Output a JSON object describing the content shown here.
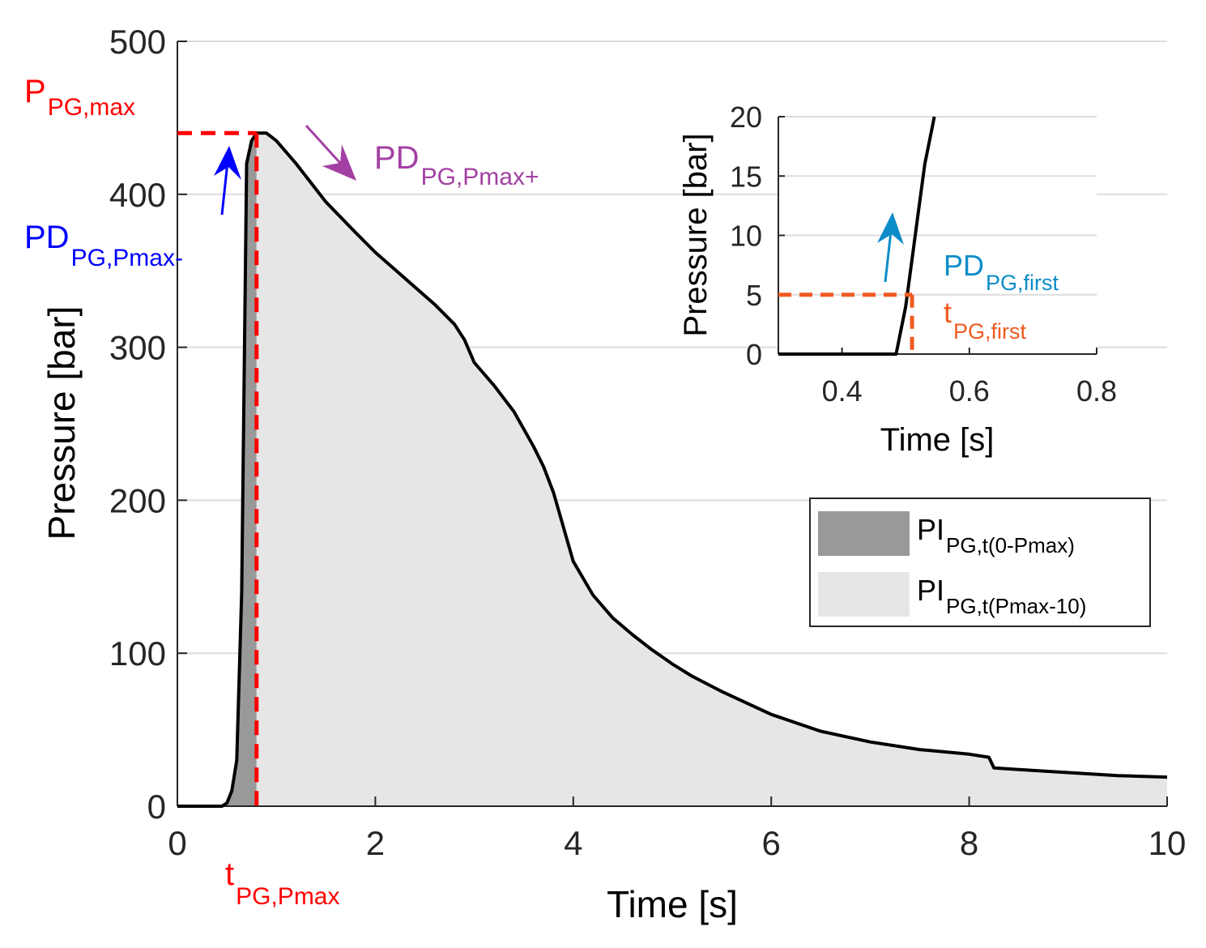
{
  "chart_data": [
    {
      "type": "area",
      "xlabel": "Time [s]",
      "ylabel": "Pressure [bar]",
      "xlim": [
        0,
        10
      ],
      "ylim": [
        0,
        500
      ],
      "xticks": [
        0,
        2,
        4,
        6,
        8,
        10
      ],
      "yticks": [
        0,
        100,
        200,
        300,
        400,
        500
      ],
      "grid": "horizontal",
      "series": [
        {
          "name": "pressure",
          "x": [
            0,
            0.45,
            0.5,
            0.55,
            0.6,
            0.65,
            0.7,
            0.75,
            0.8,
            0.9,
            1.0,
            1.2,
            1.5,
            1.8,
            2.0,
            2.3,
            2.6,
            2.8,
            2.9,
            3.0,
            3.2,
            3.4,
            3.6,
            3.7,
            3.8,
            4.0,
            4.2,
            4.4,
            4.6,
            4.8,
            5.0,
            5.2,
            5.5,
            6.0,
            6.5,
            7.0,
            7.5,
            8.0,
            8.2,
            8.25,
            8.5,
            9.0,
            9.5,
            10.0
          ],
          "y": [
            0,
            0,
            2,
            10,
            30,
            140,
            420,
            435,
            440,
            440,
            435,
            420,
            395,
            375,
            362,
            345,
            328,
            315,
            305,
            290,
            275,
            258,
            235,
            222,
            205,
            160,
            138,
            123,
            112,
            102,
            93,
            85,
            75,
            60,
            49,
            42,
            37,
            34,
            32,
            25,
            24,
            22,
            20,
            19
          ]
        }
      ],
      "shaded_regions": [
        {
          "name": "PI_PG,t(0-Pmax)",
          "x_from": 0.45,
          "x_to": 0.8,
          "color": "#999999"
        },
        {
          "name": "PI_PG,t(Pmax-10)",
          "x_from": 0.8,
          "x_to": 10,
          "color": "#e6e6e6"
        }
      ],
      "markers": {
        "pmax_value": 440,
        "t_pmax": 0.8
      },
      "annotations": {
        "p_max": {
          "main": "P",
          "sub": "PG,max",
          "color": "#ff0000"
        },
        "t_pmax": {
          "main": "t",
          "sub": "PG,Pmax",
          "color": "#ff0000"
        },
        "pd_minus": {
          "main": "PD",
          "sub": "PG,Pmax-",
          "color": "#0000ff"
        },
        "pd_plus": {
          "main": "PD",
          "sub": "PG,Pmax+",
          "color": "#a340a3"
        }
      },
      "legend": {
        "placement": "center-right",
        "items": [
          {
            "main": "PI",
            "sub": "PG,t(0-Pmax)",
            "color": "#999999"
          },
          {
            "main": "PI",
            "sub": "PG,t(Pmax-10)",
            "color": "#e6e6e6"
          }
        ]
      }
    },
    {
      "type": "line",
      "placement": "inset top-right",
      "xlabel": "Time [s]",
      "ylabel": "Pressure [bar]",
      "xlim": [
        0.3,
        0.8
      ],
      "ylim": [
        0,
        20
      ],
      "xticks": [
        0.4,
        0.6,
        0.8
      ],
      "xtick_labels": [
        "0.4",
        "0.6",
        "0.8"
      ],
      "yticks": [
        0,
        5,
        10,
        15,
        20
      ],
      "grid": "horizontal",
      "series": [
        {
          "name": "pressure",
          "x": [
            0.3,
            0.485,
            0.5,
            0.51,
            0.52,
            0.53,
            0.545
          ],
          "y": [
            0,
            0,
            4,
            8,
            12,
            16,
            20.5
          ]
        }
      ],
      "markers": {
        "first_value": 5,
        "t_first": 0.51
      },
      "annotations": {
        "pd_first": {
          "main": "PD",
          "sub": "PG,first",
          "color": "#0c8cc8"
        },
        "t_first": {
          "main": "t",
          "sub": "PG,first",
          "color": "#f05a20"
        }
      }
    }
  ]
}
